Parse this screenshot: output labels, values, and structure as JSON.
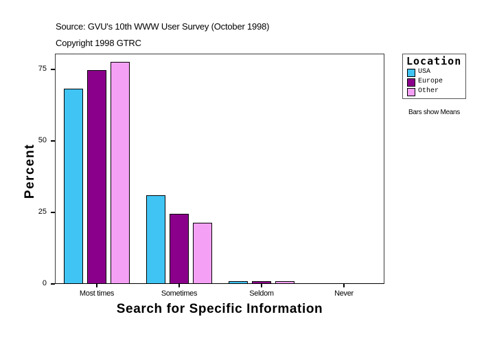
{
  "header": {
    "source": "Source: GVU's 10th WWW User Survey (October 1998)",
    "copyright": "Copyright 1998 GTRC"
  },
  "legend": {
    "title": "Location",
    "items": [
      {
        "label": "USA",
        "color": "#40c4f4"
      },
      {
        "label": "Europe",
        "color": "#8b008b"
      },
      {
        "label": "Other",
        "color": "#f4a0f4"
      }
    ],
    "note": "Bars show Means"
  },
  "axes": {
    "ylabel": "Percent",
    "xlabel": "Search for Specific Information",
    "yticks": [
      "0",
      "25",
      "50",
      "75"
    ],
    "categories": [
      "Most times",
      "Sometimes",
      "Seldom",
      "Never"
    ]
  },
  "chart_data": {
    "type": "bar",
    "title": "Source: GVU's 10th WWW User Survey (October 1998)",
    "subtitle": "Copyright 1998 GTRC",
    "xlabel": "Search for Specific Information",
    "ylabel": "Percent",
    "categories": [
      "Most times",
      "Sometimes",
      "Seldom",
      "Never"
    ],
    "series": [
      {
        "name": "USA",
        "color": "#40c4f4",
        "values": [
          68.3,
          31.0,
          0.7,
          0.0
        ]
      },
      {
        "name": "Europe",
        "color": "#8b008b",
        "values": [
          74.8,
          24.5,
          0.7,
          0.0
        ]
      },
      {
        "name": "Other",
        "color": "#f4a0f4",
        "values": [
          77.6,
          21.4,
          0.7,
          0.0
        ]
      }
    ],
    "ylim": [
      0,
      80.5
    ],
    "yticks": [
      0,
      25,
      50,
      75
    ],
    "grid": false,
    "legend": {
      "title": "Location",
      "position": "right"
    },
    "annotations": [
      "Bars show Means"
    ]
  }
}
